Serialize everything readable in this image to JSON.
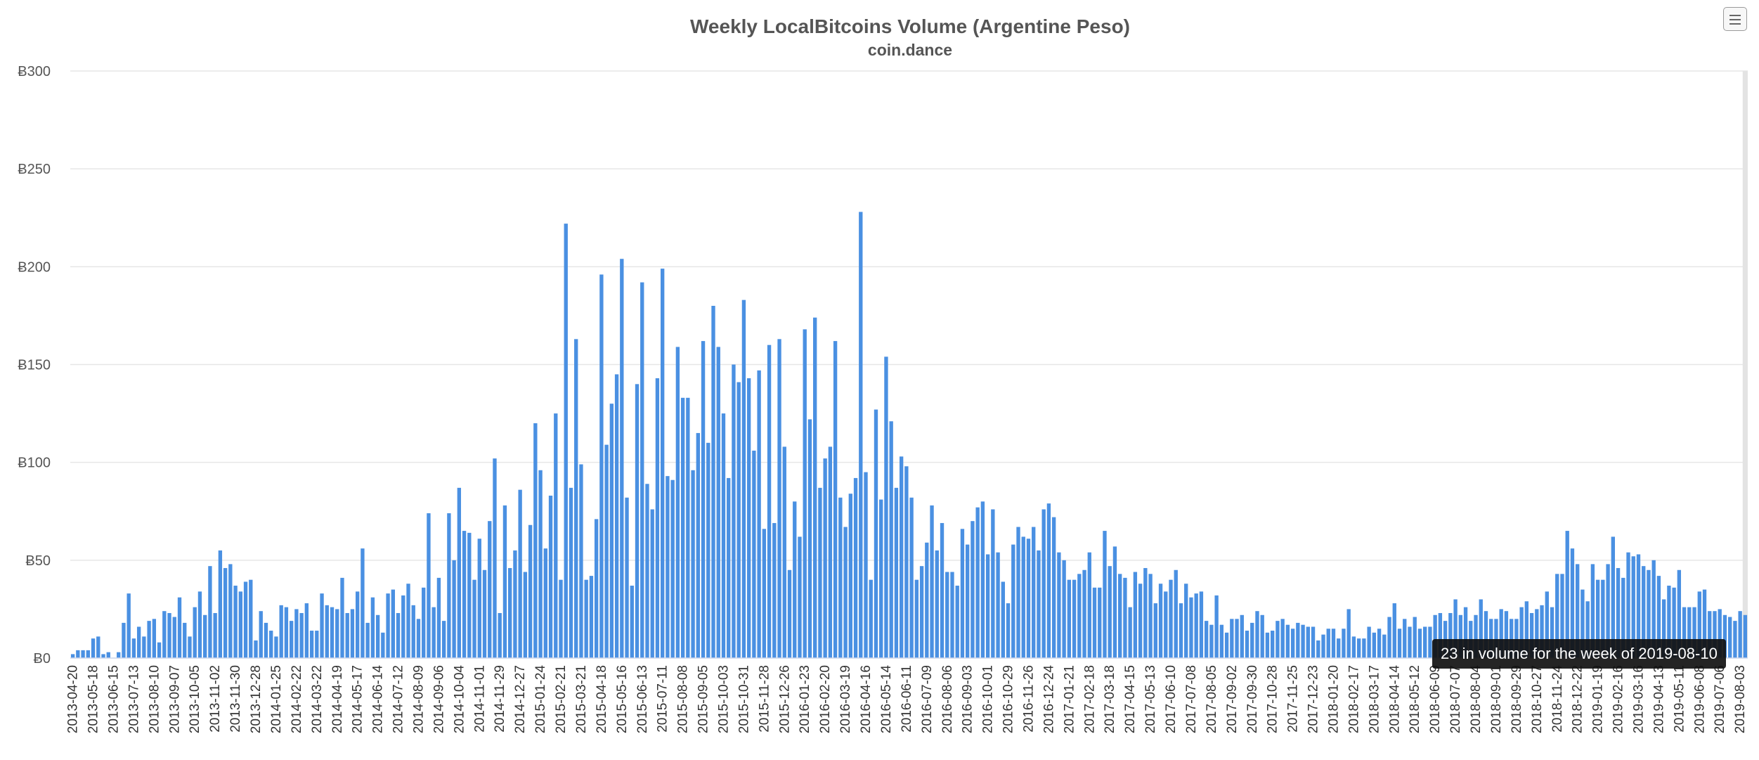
{
  "chart_data": {
    "type": "bar",
    "title": "Weekly LocalBitcoins Volume (Argentine Peso)",
    "subtitle": "coin.dance",
    "currency_prefix": "Ƀ",
    "ylim": [
      0,
      300
    ],
    "ytick_values": [
      0,
      50,
      100,
      150,
      200,
      250,
      300
    ],
    "yticks": [
      "Ƀ0",
      "Ƀ50",
      "Ƀ100",
      "Ƀ150",
      "Ƀ200",
      "Ƀ250",
      "Ƀ300"
    ],
    "grid": true,
    "bar_color": "#4a90e2",
    "highlight_color": "#e3e3e3",
    "xticks": [
      "2013-04-20",
      "2013-05-18",
      "2013-06-15",
      "2013-07-13",
      "2013-08-10",
      "2013-09-07",
      "2013-10-05",
      "2013-11-02",
      "2013-11-30",
      "2013-12-28",
      "2014-01-25",
      "2014-02-22",
      "2014-03-22",
      "2014-04-19",
      "2014-05-17",
      "2014-06-14",
      "2014-07-12",
      "2014-08-09",
      "2014-09-06",
      "2014-10-04",
      "2014-11-01",
      "2014-11-29",
      "2014-12-27",
      "2015-01-24",
      "2015-02-21",
      "2015-03-21",
      "2015-04-18",
      "2015-05-16",
      "2015-06-13",
      "2015-07-11",
      "2015-08-08",
      "2015-09-05",
      "2015-10-03",
      "2015-10-31",
      "2015-11-28",
      "2015-12-26",
      "2016-01-23",
      "2016-02-20",
      "2016-03-19",
      "2016-04-16",
      "2016-05-14",
      "2016-06-11",
      "2016-07-09",
      "2016-08-06",
      "2016-09-03",
      "2016-10-01",
      "2016-10-29",
      "2016-11-26",
      "2016-12-24",
      "2017-01-21",
      "2017-02-18",
      "2017-03-18",
      "2017-04-15",
      "2017-05-13",
      "2017-06-10",
      "2017-07-08",
      "2017-08-05",
      "2017-09-02",
      "2017-09-30",
      "2017-10-28",
      "2017-11-25",
      "2017-12-23",
      "2018-01-20",
      "2018-02-17",
      "2018-03-17",
      "2018-04-14",
      "2018-05-12",
      "2018-06-09",
      "2018-07-07",
      "2018-08-04",
      "2018-09-01",
      "2018-09-29",
      "2018-10-27",
      "2018-11-24",
      "2018-12-22",
      "2019-01-19",
      "2019-02-16",
      "2019-03-16",
      "2019-04-13",
      "2019-05-11",
      "2019-06-08",
      "2019-07-06",
      "2019-08-03"
    ],
    "values": [
      2,
      4,
      4,
      4,
      10,
      11,
      2,
      3,
      0,
      3,
      18,
      33,
      10,
      16,
      11,
      19,
      20,
      8,
      24,
      23,
      21,
      31,
      18,
      11,
      26,
      34,
      22,
      47,
      23,
      55,
      46,
      48,
      37,
      34,
      39,
      40,
      9,
      24,
      18,
      14,
      11,
      27,
      26,
      19,
      25,
      23,
      28,
      14,
      14,
      33,
      27,
      26,
      25,
      41,
      23,
      25,
      34,
      56,
      18,
      31,
      22,
      13,
      33,
      35,
      23,
      32,
      38,
      27,
      20,
      36,
      74,
      26,
      41,
      19,
      74,
      50,
      87,
      65,
      64,
      40,
      61,
      45,
      70,
      102,
      23,
      78,
      46,
      55,
      86,
      44,
      68,
      120,
      96,
      56,
      83,
      125,
      40,
      222,
      87,
      163,
      99,
      40,
      42,
      71,
      196,
      109,
      130,
      145,
      204,
      82,
      37,
      140,
      192,
      89,
      76,
      143,
      199,
      93,
      91,
      159,
      133,
      133,
      96,
      115,
      162,
      110,
      180,
      159,
      125,
      92,
      150,
      141,
      183,
      143,
      106,
      147,
      66,
      160,
      69,
      163,
      108,
      45,
      80,
      62,
      168,
      122,
      174,
      87,
      102,
      108,
      162,
      82,
      67,
      84,
      92,
      228,
      95,
      40,
      127,
      81,
      154,
      121,
      87,
      103,
      98,
      82,
      40,
      47,
      59,
      78,
      55,
      69,
      44,
      44,
      37,
      66,
      58,
      70,
      77,
      80,
      53,
      76,
      54,
      39,
      28,
      58,
      67,
      62,
      61,
      67,
      55,
      76,
      79,
      72,
      54,
      50,
      40,
      40,
      43,
      45,
      54,
      36,
      36,
      65,
      47,
      57,
      43,
      41,
      26,
      44,
      38,
      46,
      43,
      28,
      38,
      34,
      40,
      45,
      28,
      38,
      31,
      33,
      34,
      19,
      17,
      32,
      17,
      13,
      20,
      20,
      22,
      14,
      18,
      24,
      22,
      13,
      14,
      19,
      20,
      17,
      15,
      18,
      17,
      16,
      16,
      9,
      12,
      15,
      15,
      10,
      15,
      25,
      11,
      10,
      10,
      16,
      13,
      15,
      12,
      21,
      28,
      15,
      20,
      16,
      21,
      15,
      16,
      16,
      22,
      23,
      19,
      23,
      30,
      22,
      26,
      19,
      22,
      30,
      24,
      20,
      20,
      25,
      24,
      20,
      20,
      26,
      29,
      23,
      25,
      27,
      34,
      26,
      43,
      43,
      65,
      56,
      48,
      35,
      29,
      48,
      40,
      40,
      48,
      62,
      46,
      41,
      54,
      52,
      53,
      47,
      45,
      50,
      42,
      30,
      37,
      36,
      45,
      26,
      26,
      26,
      34,
      35,
      24,
      24,
      25,
      22,
      21,
      19,
      24,
      22
    ],
    "tooltip": "23 in volume for the week of 2019-08-10"
  },
  "toolbar": {
    "menu_icon": "hamburger-menu-icon"
  }
}
